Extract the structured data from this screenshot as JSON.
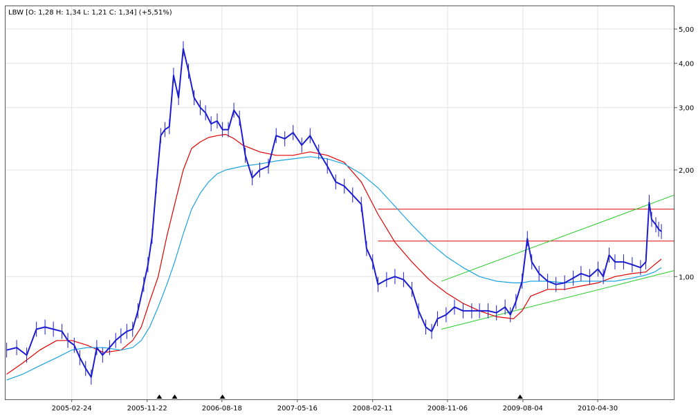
{
  "chart_data": {
    "type": "line",
    "title": "LBW [O: 1,28  H: 1,34  L: 1,21  C: 1,34] (+5,51%)",
    "y_scale": "log",
    "ylim": [
      0.45,
      5.8
    ],
    "y_ticks": [
      {
        "value": 1.0,
        "label": "1,00"
      },
      {
        "value": 2.0,
        "label": "2,00"
      },
      {
        "value": 3.0,
        "label": "3,00"
      },
      {
        "value": 4.0,
        "label": "4,00"
      },
      {
        "value": 5.0,
        "label": "5,00"
      }
    ],
    "x_range": [
      "2004-07-01",
      "2011-01-31"
    ],
    "x_ticks": [
      "2005-02-24",
      "2005-11-22",
      "2006-08-18",
      "2007-05-16",
      "2008-02-11",
      "2008-11-06",
      "2009-08-04",
      "2010-04-30"
    ],
    "grid": true,
    "colors": {
      "price": "#1c1ccf",
      "ma_short": "#e00000",
      "ma_long": "#1aa3e0",
      "support_resistance": "#e00000",
      "channel": "#22cc22",
      "markers": "#000000"
    },
    "series": [
      {
        "key": "price",
        "x": [
          "2004-07-05",
          "2004-08-10",
          "2004-09-15",
          "2004-10-20",
          "2004-11-20",
          "2004-12-20",
          "2005-01-20",
          "2005-02-10",
          "2005-03-05",
          "2005-03-25",
          "2005-04-15",
          "2005-05-05",
          "2005-05-25",
          "2005-06-15",
          "2005-07-10",
          "2005-08-01",
          "2005-08-20",
          "2005-09-10",
          "2005-10-01",
          "2005-10-20",
          "2005-11-10",
          "2005-11-25",
          "2005-12-10",
          "2005-12-25",
          "2006-01-10",
          "2006-01-25",
          "2006-02-10",
          "2006-02-25",
          "2006-03-15",
          "2006-04-01",
          "2006-04-20",
          "2006-05-10",
          "2006-06-01",
          "2006-06-20",
          "2006-07-10",
          "2006-08-01",
          "2006-08-20",
          "2006-09-10",
          "2006-09-30",
          "2006-10-20",
          "2006-11-10",
          "2006-12-05",
          "2007-01-01",
          "2007-02-01",
          "2007-03-01",
          "2007-04-01",
          "2007-05-01",
          "2007-06-01",
          "2007-07-01",
          "2007-08-01",
          "2007-09-01",
          "2007-10-01",
          "2007-11-01",
          "2007-12-01",
          "2008-01-01",
          "2008-01-20",
          "2008-02-11",
          "2008-03-01",
          "2008-04-01",
          "2008-05-01",
          "2008-06-01",
          "2008-07-01",
          "2008-07-25",
          "2008-08-20",
          "2008-09-10",
          "2008-10-01",
          "2008-11-01",
          "2008-12-01",
          "2009-01-01",
          "2009-02-01",
          "2009-03-01",
          "2009-04-01",
          "2009-05-01",
          "2009-06-01",
          "2009-06-20",
          "2009-07-10",
          "2009-08-01",
          "2009-08-20",
          "2009-09-05",
          "2009-10-01",
          "2009-11-01",
          "2009-12-01",
          "2010-01-01",
          "2010-02-01",
          "2010-03-01",
          "2010-04-01",
          "2010-05-01",
          "2010-05-20",
          "2010-06-10",
          "2010-07-01",
          "2010-08-01",
          "2010-09-01",
          "2010-10-01",
          "2010-10-20",
          "2010-11-01",
          "2010-11-10",
          "2010-11-25",
          "2010-12-05",
          "2010-12-15"
        ],
        "values": [
          0.62,
          0.63,
          0.6,
          0.71,
          0.72,
          0.71,
          0.7,
          0.66,
          0.64,
          0.59,
          0.55,
          0.52,
          0.63,
          0.6,
          0.63,
          0.66,
          0.68,
          0.7,
          0.71,
          0.8,
          0.95,
          1.08,
          1.3,
          1.8,
          2.5,
          2.6,
          2.65,
          3.7,
          3.2,
          4.4,
          3.8,
          3.2,
          3.0,
          2.9,
          2.7,
          2.75,
          2.6,
          2.6,
          2.95,
          2.8,
          2.2,
          1.9,
          2.0,
          2.05,
          2.5,
          2.45,
          2.55,
          2.35,
          2.5,
          2.25,
          2.05,
          1.85,
          1.8,
          1.7,
          1.6,
          1.2,
          1.1,
          0.95,
          0.98,
          1.0,
          0.98,
          0.92,
          0.8,
          0.72,
          0.7,
          0.76,
          0.78,
          0.82,
          0.8,
          0.8,
          0.8,
          0.8,
          0.79,
          0.82,
          0.78,
          0.85,
          0.97,
          1.28,
          1.1,
          1.02,
          0.97,
          0.95,
          0.96,
          0.99,
          1.02,
          1.0,
          1.05,
          1.0,
          1.15,
          1.1,
          1.1,
          1.08,
          1.06,
          1.1,
          1.62,
          1.45,
          1.4,
          1.36,
          1.34
        ]
      },
      {
        "key": "ma_short",
        "x": [
          "2004-07-05",
          "2004-09-01",
          "2004-11-01",
          "2005-01-01",
          "2005-02-24",
          "2005-04-20",
          "2005-06-20",
          "2005-08-20",
          "2005-10-01",
          "2005-11-01",
          "2005-12-01",
          "2006-01-01",
          "2006-02-01",
          "2006-03-01",
          "2006-04-01",
          "2006-05-01",
          "2006-06-01",
          "2006-07-01",
          "2006-08-01",
          "2006-09-01",
          "2006-10-01",
          "2006-11-01",
          "2007-01-01",
          "2007-03-01",
          "2007-05-01",
          "2007-07-01",
          "2007-09-01",
          "2007-11-01",
          "2008-01-01",
          "2008-03-01",
          "2008-05-01",
          "2008-07-01",
          "2008-09-01",
          "2008-11-01",
          "2009-01-01",
          "2009-03-01",
          "2009-05-01",
          "2009-07-01",
          "2009-08-01",
          "2009-09-01",
          "2009-11-01",
          "2010-01-01",
          "2010-03-01",
          "2010-05-01",
          "2010-07-01",
          "2010-09-01",
          "2010-10-20",
          "2010-11-20",
          "2010-12-15"
        ],
        "values": [
          0.53,
          0.57,
          0.62,
          0.66,
          0.66,
          0.64,
          0.61,
          0.62,
          0.66,
          0.72,
          0.85,
          1.0,
          1.3,
          1.6,
          2.0,
          2.3,
          2.4,
          2.47,
          2.5,
          2.52,
          2.45,
          2.35,
          2.25,
          2.2,
          2.2,
          2.25,
          2.2,
          2.1,
          1.85,
          1.5,
          1.25,
          1.1,
          0.98,
          0.9,
          0.84,
          0.8,
          0.77,
          0.76,
          0.8,
          0.88,
          0.92,
          0.92,
          0.94,
          0.96,
          1.0,
          1.02,
          1.03,
          1.08,
          1.12
        ]
      },
      {
        "key": "ma_long",
        "x": [
          "2004-07-05",
          "2004-09-01",
          "2004-11-01",
          "2005-01-01",
          "2005-02-24",
          "2005-04-20",
          "2005-06-20",
          "2005-08-20",
          "2005-10-01",
          "2005-11-01",
          "2005-12-01",
          "2006-01-01",
          "2006-02-01",
          "2006-03-01",
          "2006-04-01",
          "2006-05-01",
          "2006-06-01",
          "2006-07-01",
          "2006-08-01",
          "2006-09-01",
          "2006-11-01",
          "2007-01-01",
          "2007-03-01",
          "2007-05-01",
          "2007-07-01",
          "2007-09-01",
          "2007-11-01",
          "2008-01-01",
          "2008-03-01",
          "2008-05-01",
          "2008-07-01",
          "2008-09-01",
          "2008-11-01",
          "2009-01-01",
          "2009-03-01",
          "2009-05-01",
          "2009-07-01",
          "2009-08-01",
          "2009-09-01",
          "2009-11-01",
          "2010-01-01",
          "2010-03-01",
          "2010-05-01",
          "2010-07-01",
          "2010-09-01",
          "2010-10-20",
          "2010-11-20",
          "2010-12-15"
        ],
        "values": [
          0.51,
          0.53,
          0.56,
          0.59,
          0.62,
          0.63,
          0.63,
          0.62,
          0.63,
          0.66,
          0.72,
          0.82,
          0.95,
          1.1,
          1.32,
          1.55,
          1.72,
          1.85,
          1.95,
          2.0,
          2.05,
          2.08,
          2.12,
          2.15,
          2.18,
          2.15,
          2.08,
          1.95,
          1.78,
          1.58,
          1.4,
          1.25,
          1.14,
          1.06,
          1.0,
          0.97,
          0.96,
          0.96,
          0.97,
          0.97,
          0.96,
          0.97,
          0.97,
          0.97,
          0.99,
          1.01,
          1.03,
          1.06
        ]
      }
    ],
    "horizontal_lines": [
      {
        "value": 1.55,
        "from": "2008-03-01",
        "to": "2011-01-31"
      },
      {
        "value": 1.26,
        "from": "2008-03-01",
        "to": "2011-01-31"
      }
    ],
    "trend_channel": [
      {
        "from": [
          "2008-10-15",
          0.97
        ],
        "to": [
          "2011-01-31",
          1.7
        ]
      },
      {
        "from": [
          "2008-10-15",
          0.71
        ],
        "to": [
          "2011-01-31",
          1.04
        ]
      }
    ],
    "event_markers": [
      "2006-01-05",
      "2006-03-01",
      "2006-08-20",
      "2009-07-25"
    ]
  }
}
